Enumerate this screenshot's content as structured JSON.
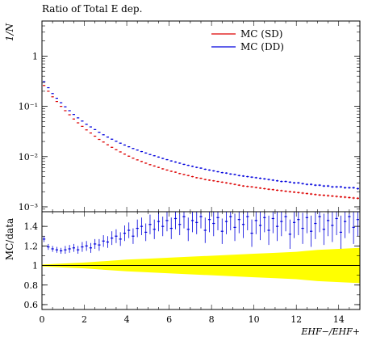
{
  "title": "Ratio of Total E dep.",
  "chart_data": [
    {
      "type": "scatter",
      "name": "main",
      "title": "Ratio of Total E dep.",
      "ylabel": "1/N",
      "xlabel": "",
      "yscale": "log",
      "xlim": [
        0,
        15
      ],
      "ylim": [
        0.0008,
        5
      ],
      "y_ticks": [
        {
          "v": 0.001,
          "label": "10⁻³"
        },
        {
          "v": 0.01,
          "label": "10⁻²"
        },
        {
          "v": 0.1,
          "label": "10⁻¹"
        },
        {
          "v": 1,
          "label": "1"
        }
      ],
      "legend": "top-right",
      "series": [
        {
          "name": "MC (SD)",
          "color": "#dd0000",
          "x": [
            0.1,
            0.3,
            0.5,
            0.7,
            0.9,
            1.1,
            1.3,
            1.5,
            1.7,
            1.9,
            2.1,
            2.3,
            2.5,
            2.7,
            2.9,
            3.1,
            3.3,
            3.5,
            3.7,
            3.9,
            4.1,
            4.3,
            4.5,
            4.7,
            4.9,
            5.1,
            5.3,
            5.5,
            5.7,
            5.9,
            6.1,
            6.3,
            6.5,
            6.7,
            6.9,
            7.1,
            7.3,
            7.5,
            7.7,
            7.9,
            8.1,
            8.3,
            8.5,
            8.7,
            8.9,
            9.1,
            9.3,
            9.5,
            9.7,
            9.9,
            10.1,
            10.3,
            10.5,
            10.7,
            10.9,
            11.1,
            11.3,
            11.5,
            11.7,
            11.9,
            12.1,
            12.3,
            12.5,
            12.7,
            12.9,
            13.1,
            13.3,
            13.5,
            13.7,
            13.9,
            14.1,
            14.3,
            14.5,
            14.7,
            14.9
          ],
          "y": [
            0.26,
            0.2,
            0.155,
            0.125,
            0.1,
            0.082,
            0.068,
            0.056,
            0.047,
            0.04,
            0.034,
            0.0295,
            0.0255,
            0.022,
            0.0195,
            0.0172,
            0.0153,
            0.0137,
            0.0124,
            0.0112,
            0.0102,
            0.0093,
            0.0086,
            0.008,
            0.0074,
            0.0069,
            0.0065,
            0.0061,
            0.0057,
            0.0054,
            0.0051,
            0.0049,
            0.0046,
            0.0044,
            0.0042,
            0.004,
            0.0038,
            0.0037,
            0.0035,
            0.0034,
            0.0033,
            0.0032,
            0.0031,
            0.003,
            0.0029,
            0.0028,
            0.0027,
            0.0026,
            0.00255,
            0.0025,
            0.00243,
            0.00236,
            0.0023,
            0.00224,
            0.0022,
            0.00214,
            0.0021,
            0.00205,
            0.002,
            0.00196,
            0.00192,
            0.00188,
            0.00184,
            0.0018,
            0.00176,
            0.00172,
            0.0017,
            0.00167,
            0.00164,
            0.00161,
            0.00158,
            0.00156,
            0.00153,
            0.0015,
            0.00148
          ]
        },
        {
          "name": "MC (DD)",
          "color": "#0000dd",
          "x": [
            0.1,
            0.3,
            0.5,
            0.7,
            0.9,
            1.1,
            1.3,
            1.5,
            1.7,
            1.9,
            2.1,
            2.3,
            2.5,
            2.7,
            2.9,
            3.1,
            3.3,
            3.5,
            3.7,
            3.9,
            4.1,
            4.3,
            4.5,
            4.7,
            4.9,
            5.1,
            5.3,
            5.5,
            5.7,
            5.9,
            6.1,
            6.3,
            6.5,
            6.7,
            6.9,
            7.1,
            7.3,
            7.5,
            7.7,
            7.9,
            8.1,
            8.3,
            8.5,
            8.7,
            8.9,
            9.1,
            9.3,
            9.5,
            9.7,
            9.9,
            10.1,
            10.3,
            10.5,
            10.7,
            10.9,
            11.1,
            11.3,
            11.5,
            11.7,
            11.9,
            12.1,
            12.3,
            12.5,
            12.7,
            12.9,
            13.1,
            13.3,
            13.5,
            13.7,
            13.9,
            14.1,
            14.3,
            14.5,
            14.7,
            14.9
          ],
          "y": [
            0.31,
            0.235,
            0.18,
            0.145,
            0.118,
            0.098,
            0.082,
            0.069,
            0.059,
            0.051,
            0.044,
            0.039,
            0.0345,
            0.0305,
            0.0272,
            0.0245,
            0.0222,
            0.0202,
            0.0185,
            0.017,
            0.0157,
            0.0145,
            0.0135,
            0.0126,
            0.0118,
            0.011,
            0.0104,
            0.0098,
            0.0092,
            0.0087,
            0.0082,
            0.0078,
            0.0074,
            0.007,
            0.0067,
            0.0064,
            0.0061,
            0.0059,
            0.0056,
            0.0054,
            0.0052,
            0.005,
            0.0048,
            0.0047,
            0.0045,
            0.0044,
            0.0042,
            0.0041,
            0.004,
            0.0039,
            0.0038,
            0.0037,
            0.0036,
            0.0035,
            0.0034,
            0.0033,
            0.0032,
            0.0032,
            0.0031,
            0.003,
            0.003,
            0.0029,
            0.0028,
            0.0028,
            0.0027,
            0.0027,
            0.0026,
            0.0026,
            0.0025,
            0.0025,
            0.0025,
            0.0024,
            0.0024,
            0.0024,
            0.0023
          ]
        }
      ]
    },
    {
      "type": "scatter",
      "name": "ratio",
      "xlabel": "E_{HF−}/E_{HF+}",
      "ylabel": "MC/data",
      "xlim": [
        0,
        15
      ],
      "ylim": [
        0.55,
        1.55
      ],
      "x_ticks": [
        0,
        2,
        4,
        6,
        8,
        10,
        12,
        14
      ],
      "y_ticks": [
        0.6,
        0.8,
        1,
        1.2,
        1.4
      ],
      "reference_line": 1,
      "band": {
        "color": "#ffff00",
        "x": [
          0,
          1,
          2,
          3,
          4,
          5,
          6,
          7,
          8,
          9,
          10,
          11,
          12,
          13,
          14,
          15
        ],
        "half_width": [
          0.01,
          0.02,
          0.03,
          0.045,
          0.06,
          0.07,
          0.08,
          0.09,
          0.1,
          0.11,
          0.12,
          0.13,
          0.14,
          0.16,
          0.17,
          0.18
        ]
      },
      "series": [
        {
          "name": "MC (DD)",
          "color": "#0000dd",
          "x": [
            0.1,
            0.3,
            0.5,
            0.7,
            0.9,
            1.1,
            1.3,
            1.5,
            1.7,
            1.9,
            2.1,
            2.3,
            2.5,
            2.7,
            2.9,
            3.1,
            3.3,
            3.5,
            3.7,
            3.9,
            4.1,
            4.3,
            4.5,
            4.7,
            4.9,
            5.1,
            5.3,
            5.5,
            5.7,
            5.9,
            6.1,
            6.3,
            6.5,
            6.7,
            6.9,
            7.1,
            7.3,
            7.5,
            7.7,
            7.9,
            8.1,
            8.3,
            8.5,
            8.7,
            8.9,
            9.1,
            9.3,
            9.5,
            9.7,
            9.9,
            10.1,
            10.3,
            10.5,
            10.7,
            10.9,
            11.1,
            11.3,
            11.5,
            11.7,
            11.9,
            12.1,
            12.3,
            12.5,
            12.7,
            12.9,
            13.1,
            13.3,
            13.5,
            13.7,
            13.9,
            14.1,
            14.3,
            14.5,
            14.7,
            14.9
          ],
          "y": [
            1.27,
            1.19,
            1.17,
            1.16,
            1.15,
            1.16,
            1.17,
            1.18,
            1.16,
            1.19,
            1.2,
            1.18,
            1.22,
            1.21,
            1.25,
            1.24,
            1.28,
            1.3,
            1.27,
            1.33,
            1.36,
            1.3,
            1.38,
            1.4,
            1.34,
            1.42,
            1.37,
            1.45,
            1.4,
            1.46,
            1.38,
            1.48,
            1.42,
            1.5,
            1.37,
            1.46,
            1.44,
            1.5,
            1.36,
            1.47,
            1.43,
            1.49,
            1.35,
            1.45,
            1.5,
            1.39,
            1.47,
            1.42,
            1.5,
            1.33,
            1.46,
            1.41,
            1.49,
            1.36,
            1.48,
            1.4,
            1.45,
            1.5,
            1.32,
            1.44,
            1.47,
            1.38,
            1.49,
            1.35,
            1.43,
            1.5,
            1.37,
            1.46,
            1.41,
            1.48,
            1.34,
            1.45,
            1.5,
            1.39,
            1.47
          ],
          "err": [
            0.03,
            0.03,
            0.03,
            0.03,
            0.03,
            0.04,
            0.04,
            0.04,
            0.04,
            0.05,
            0.05,
            0.05,
            0.05,
            0.06,
            0.06,
            0.06,
            0.07,
            0.07,
            0.07,
            0.08,
            0.08,
            0.08,
            0.09,
            0.09,
            0.09,
            0.1,
            0.1,
            0.1,
            0.1,
            0.11,
            0.11,
            0.11,
            0.11,
            0.12,
            0.12,
            0.12,
            0.12,
            0.12,
            0.13,
            0.13,
            0.13,
            0.13,
            0.13,
            0.13,
            0.14,
            0.14,
            0.14,
            0.14,
            0.14,
            0.14,
            0.14,
            0.15,
            0.15,
            0.15,
            0.15,
            0.15,
            0.15,
            0.15,
            0.15,
            0.16,
            0.16,
            0.16,
            0.16,
            0.16,
            0.16,
            0.16,
            0.16,
            0.16,
            0.17,
            0.17,
            0.17,
            0.17,
            0.17,
            0.17,
            0.17
          ]
        }
      ]
    }
  ]
}
